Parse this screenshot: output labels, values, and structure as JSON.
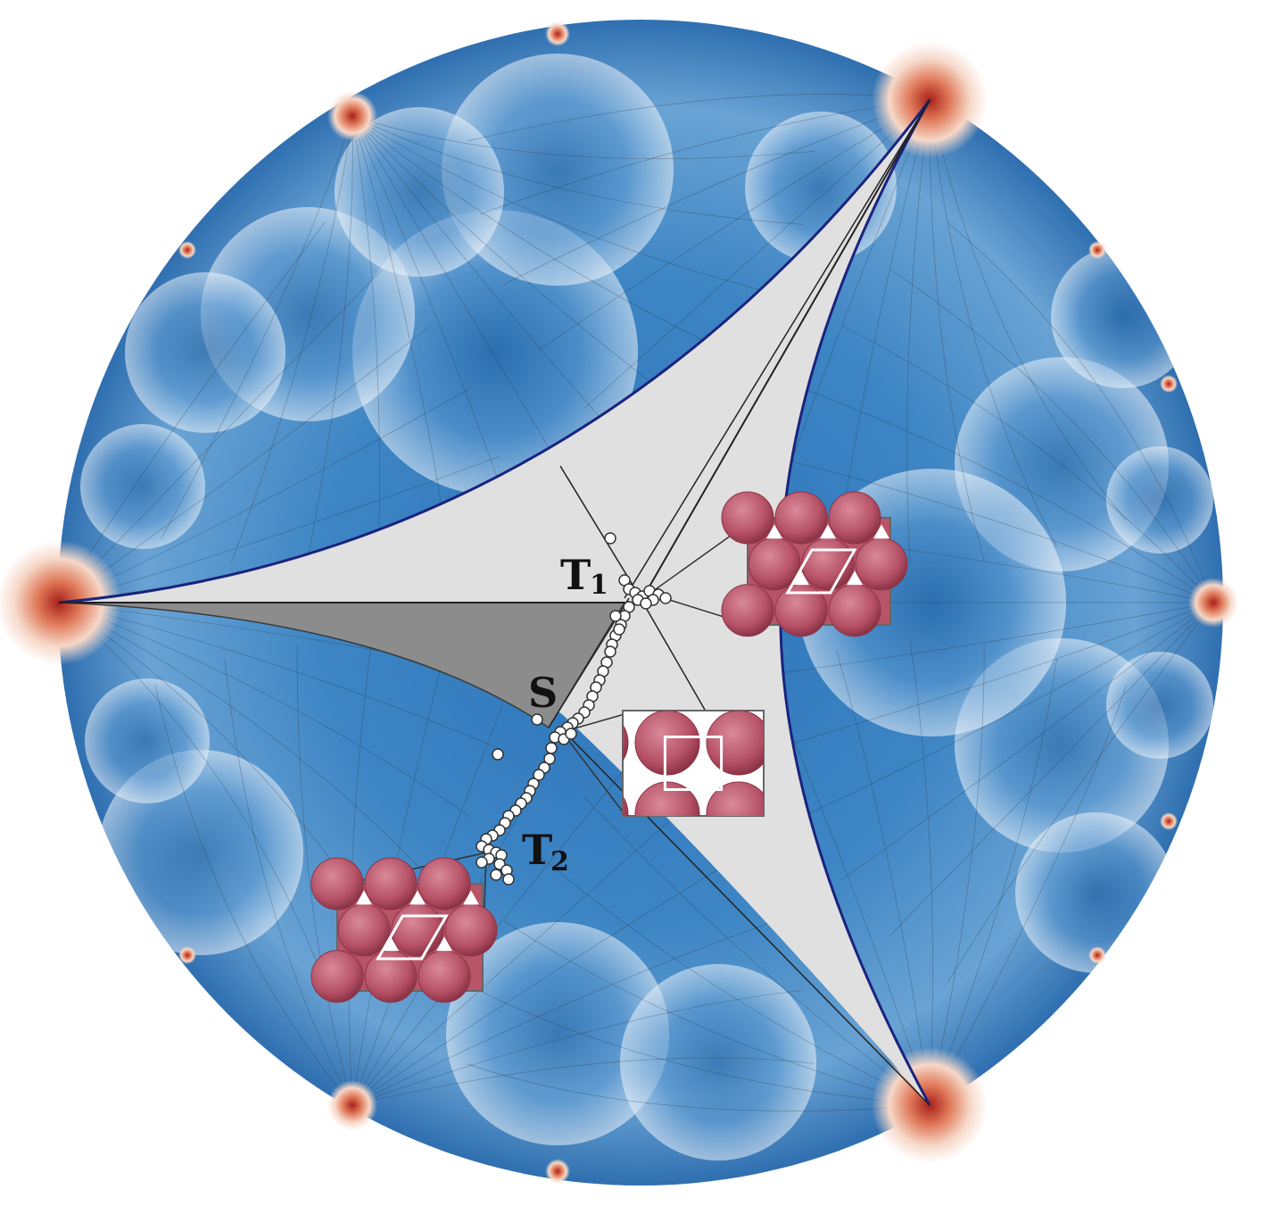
{
  "figure": {
    "labels": {
      "t1": "T",
      "t1_sub": "1",
      "s": "S",
      "t2": "T",
      "t2_sub": "2"
    },
    "colors": {
      "disk_blue": "#1f6db5",
      "disk_light": "#e8f0f8",
      "cusp_red": "#c8402a",
      "fundamental_region": "#e0e0e0",
      "shaded_subregion": "#8c8c8c",
      "boundary_curve": "#1a237e",
      "crystal_inset": "#b85468",
      "data_points": "#ffffff"
    },
    "insets": [
      {
        "name": "triangular-lattice-inset-t1",
        "lattice": "triangular"
      },
      {
        "name": "square-lattice-inset-s",
        "lattice": "square"
      },
      {
        "name": "triangular-lattice-inset-t2",
        "lattice": "triangular"
      }
    ]
  }
}
